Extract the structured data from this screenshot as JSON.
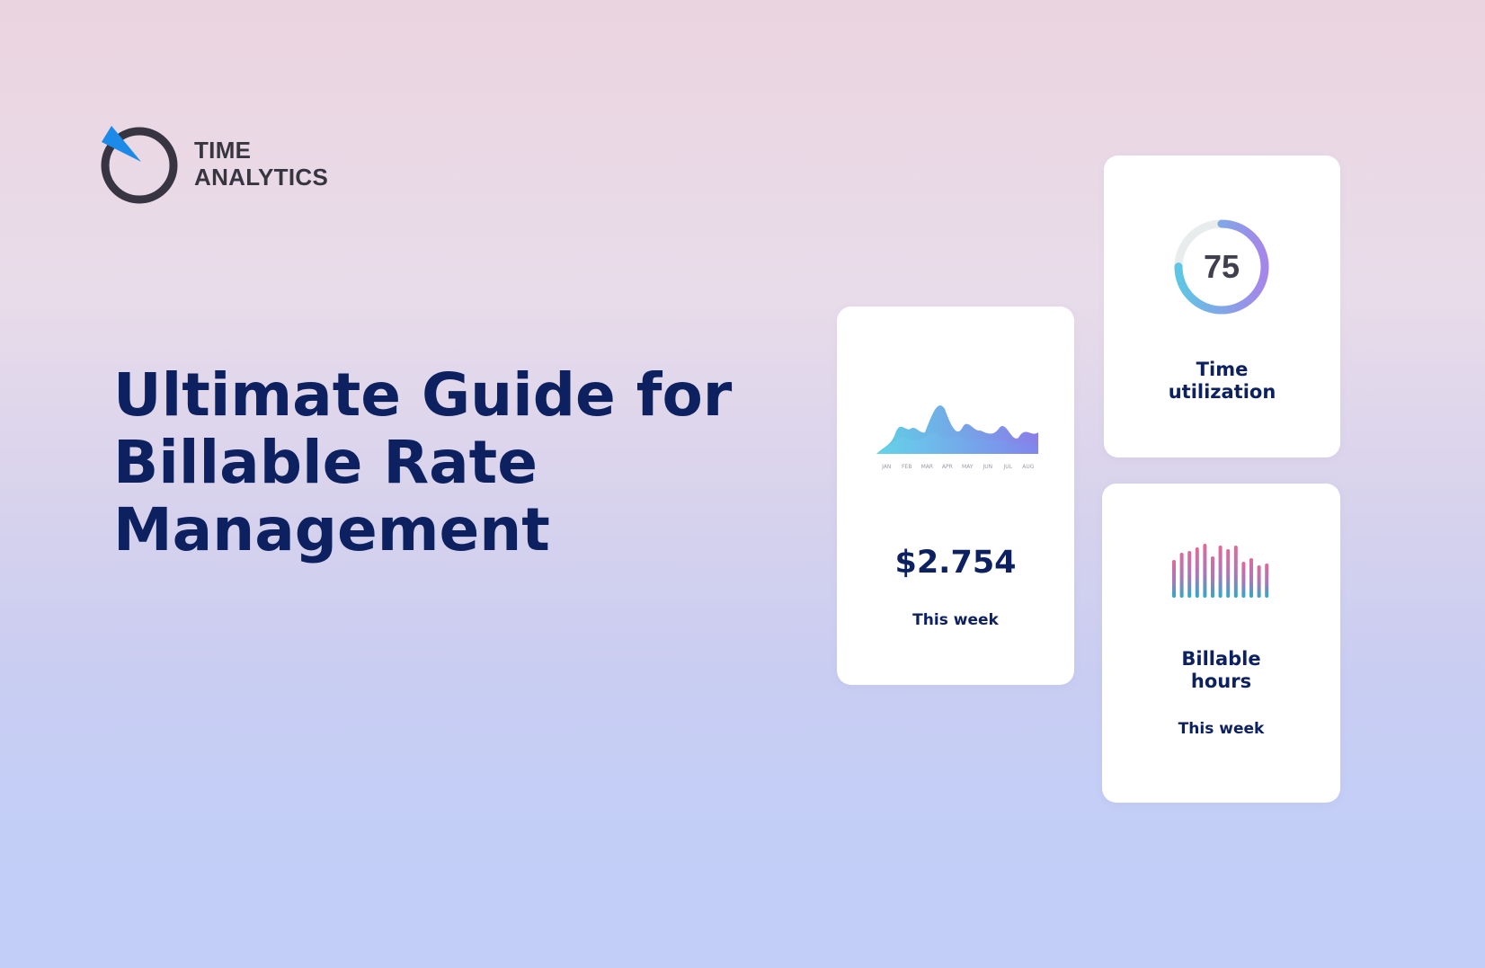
{
  "brand": {
    "line1": "TIME",
    "line2": "ANALYTICS",
    "accent_color": "#1b8ae8",
    "ring_color": "#363541"
  },
  "headline": {
    "line1": "Ultimate Guide for",
    "line2": "Billable Rate",
    "line3": "Management",
    "color": "#0d2160"
  },
  "cards": {
    "earnings": {
      "amount": "$2.754",
      "caption": "This week",
      "chart_months": [
        "JAN",
        "FEB",
        "MAR",
        "APR",
        "MAY",
        "JUN",
        "JUL",
        "AUG"
      ]
    },
    "utilization": {
      "value": "75",
      "value_percent": 75,
      "label_line1": "Time",
      "label_line2": "utilization"
    },
    "billable_hours": {
      "label_line1": "Billable",
      "label_line2": "hours",
      "caption": "This week"
    }
  }
}
